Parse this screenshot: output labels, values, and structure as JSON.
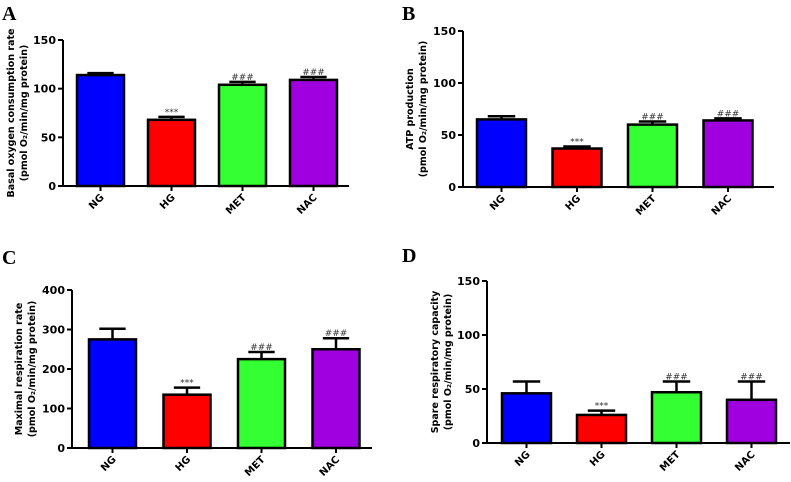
{
  "chart_data": [
    {
      "type": "bar",
      "panel": "A",
      "ylabel_line1": "Basal oxygen consumption rate",
      "ylabel_line2": "(pmol O₂/min/mg protein)",
      "categories": [
        "NG",
        "HG",
        "MET",
        "NAC"
      ],
      "values": [
        114,
        68,
        104,
        109
      ],
      "errors": [
        2,
        3,
        3,
        3
      ],
      "annotations": [
        "",
        "***",
        "###",
        "###"
      ],
      "ylim": [
        0,
        150
      ],
      "yticks": [
        0,
        50,
        100,
        150
      ]
    },
    {
      "type": "bar",
      "panel": "B",
      "ylabel_line1": "ATP  production",
      "ylabel_line2": "(pmol O₂/min/mg protein)",
      "categories": [
        "NG",
        "HG",
        "MET",
        "NAC"
      ],
      "values": [
        65,
        37,
        60,
        64
      ],
      "errors": [
        3,
        2,
        3,
        2
      ],
      "annotations": [
        "",
        "***",
        "###",
        "###"
      ],
      "ylim": [
        0,
        150
      ],
      "yticks": [
        0,
        50,
        100,
        150
      ]
    },
    {
      "type": "bar",
      "panel": "C",
      "ylabel_line1": "Maximal respiration rate",
      "ylabel_line2": "(pmol O₂/min/mg protein)",
      "categories": [
        "NG",
        "HG",
        "MET",
        "NAC"
      ],
      "values": [
        275,
        135,
        225,
        250
      ],
      "errors": [
        27,
        18,
        18,
        28
      ],
      "annotations": [
        "",
        "***",
        "###",
        "###"
      ],
      "ylim": [
        0,
        400
      ],
      "yticks": [
        0,
        100,
        200,
        300,
        400
      ]
    },
    {
      "type": "bar",
      "panel": "D",
      "ylabel_line1": "Spare respiratory capacity",
      "ylabel_line2": "(pmol O₂/min/mg protein)",
      "categories": [
        "NG",
        "HG",
        "MET",
        "NAC"
      ],
      "values": [
        46,
        26,
        47,
        40
      ],
      "errors": [
        11,
        4,
        10,
        17
      ],
      "annotations": [
        "",
        "***",
        "###",
        "###"
      ],
      "ylim": [
        0,
        150
      ],
      "yticks": [
        0,
        50,
        100,
        150
      ]
    }
  ],
  "colors": [
    "#0000ff",
    "#ff0000",
    "#33ff33",
    "#a000e0"
  ]
}
